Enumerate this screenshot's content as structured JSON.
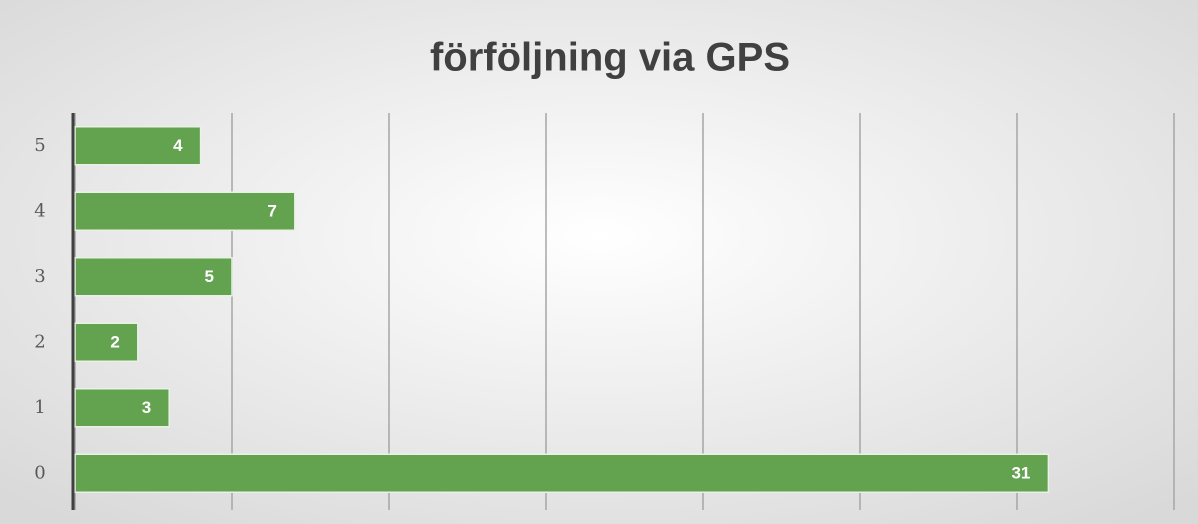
{
  "chart_data": {
    "type": "hbar",
    "title": "förföljning via GPS",
    "categories": [
      "0",
      "1",
      "2",
      "3",
      "4",
      "5"
    ],
    "values": [
      31,
      3,
      2,
      5,
      7,
      4
    ],
    "color": "#63a350",
    "xlim": [
      0,
      35
    ],
    "xticks": [
      0,
      5,
      10,
      15,
      20,
      25,
      30,
      35
    ],
    "grid": true
  }
}
